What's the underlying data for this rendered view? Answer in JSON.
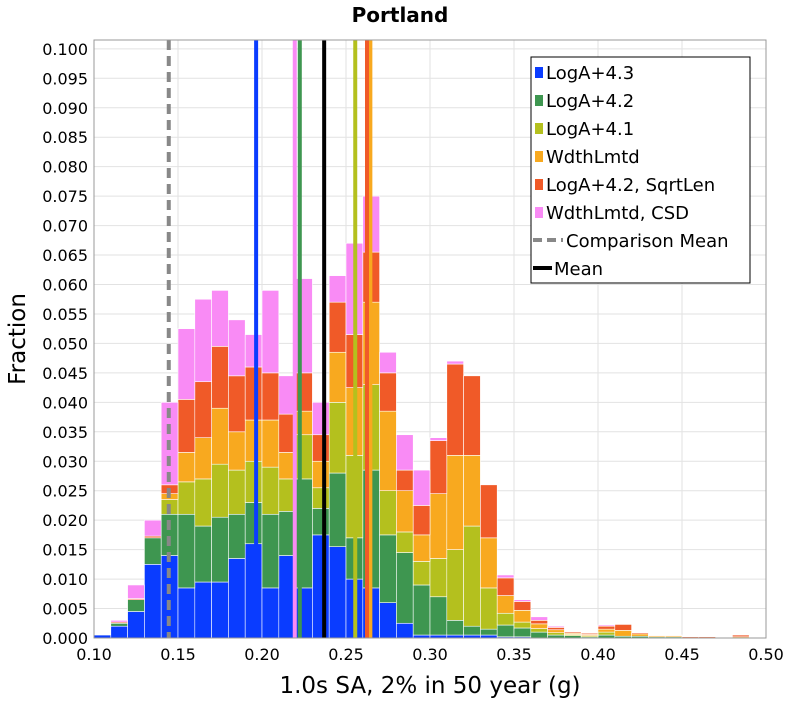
{
  "chart_data": {
    "type": "bar",
    "subtype": "stacked-histogram",
    "title": "Portland",
    "xlabel": "1.0s SA, 2% in 50 year (g)",
    "ylabel": "Fraction",
    "xlim": [
      0.1,
      0.5
    ],
    "ylim": [
      0.0,
      0.1015
    ],
    "bin_width": 0.01,
    "grid": true,
    "legend_position": "top-right",
    "x_ticks": [
      "0.10",
      "0.15",
      "0.20",
      "0.25",
      "0.30",
      "0.35",
      "0.40",
      "0.45",
      "0.50"
    ],
    "y_ticks": [
      "0.000",
      "0.005",
      "0.010",
      "0.015",
      "0.020",
      "0.025",
      "0.030",
      "0.035",
      "0.040",
      "0.045",
      "0.050",
      "0.055",
      "0.060",
      "0.065",
      "0.070",
      "0.075",
      "0.080",
      "0.085",
      "0.090",
      "0.095",
      "0.100"
    ],
    "x_bins": [
      0.1,
      0.11,
      0.12,
      0.13,
      0.14,
      0.15,
      0.16,
      0.17,
      0.18,
      0.19,
      0.2,
      0.21,
      0.22,
      0.23,
      0.24,
      0.25,
      0.26,
      0.27,
      0.28,
      0.29,
      0.3,
      0.31,
      0.32,
      0.33,
      0.34,
      0.35,
      0.36,
      0.37,
      0.38,
      0.39,
      0.4,
      0.41,
      0.42,
      0.43,
      0.44,
      0.45,
      0.46,
      0.47,
      0.48,
      0.49
    ],
    "series": [
      {
        "name": "LogA+4.3",
        "color": "#0a3cff",
        "values": [
          0.0005,
          0.002,
          0.0045,
          0.0125,
          0.014,
          0.0085,
          0.0095,
          0.0095,
          0.0135,
          0.016,
          0.0085,
          0.014,
          0.0085,
          0.0175,
          0.0155,
          0.01,
          0.0085,
          0.006,
          0.0025,
          0.0005,
          0.0005,
          0.0005,
          0.0005,
          0.0005,
          0.0002,
          0.0002,
          0.0,
          0.0,
          0.0,
          0.0,
          0.0,
          0.0,
          0.0,
          0.0,
          0.0,
          0.0,
          0.0,
          0.0,
          0.0,
          0.0
        ]
      },
      {
        "name": "LogA+4.2",
        "color": "#3e9650",
        "values": [
          0.0,
          0.0005,
          0.002,
          0.0045,
          0.007,
          0.0125,
          0.0095,
          0.011,
          0.0075,
          0.007,
          0.0125,
          0.0075,
          0.0185,
          0.0045,
          0.0125,
          0.007,
          0.02,
          0.0115,
          0.012,
          0.0085,
          0.0065,
          0.0025,
          0.0015,
          0.001,
          0.002,
          0.0015,
          0.001,
          0.0005,
          0.0004,
          0.0002,
          0.0005,
          0.0003,
          0.0003,
          0.0002,
          0.0002,
          0.0,
          0.0,
          0.0,
          0.0,
          0.0
        ]
      },
      {
        "name": "LogA+4.1",
        "color": "#b4c01e",
        "values": [
          0.0,
          0.0,
          0.0,
          0.0,
          0.0025,
          0.0055,
          0.008,
          0.009,
          0.0075,
          0.007,
          0.008,
          0.0055,
          0.0075,
          0.0035,
          0.012,
          0.014,
          0.0145,
          0.0075,
          0.0035,
          0.004,
          0.0065,
          0.012,
          0.017,
          0.007,
          0.002,
          0.001,
          0.0006,
          0.0004,
          0.0002,
          0.0002,
          0.0005,
          0.0,
          0.0,
          0.0,
          0.0,
          0.0,
          0.0,
          0.0,
          0.0,
          0.0
        ]
      },
      {
        "name": "WdthLmtd",
        "color": "#f8a91f",
        "values": [
          0.0,
          0.0,
          0.0,
          0.0,
          0.001,
          0.005,
          0.007,
          0.0095,
          0.0065,
          0.007,
          0.008,
          0.0045,
          0.004,
          0.0045,
          0.0085,
          0.0115,
          0.014,
          0.0135,
          0.007,
          0.0045,
          0.011,
          0.016,
          0.012,
          0.0085,
          0.003,
          0.002,
          0.0008,
          0.0005,
          0.0002,
          0.0002,
          0.0005,
          0.001,
          0.0004,
          0.0002,
          0.0002,
          0.0,
          0.0,
          0.0,
          0.0002,
          0.0
        ]
      },
      {
        "name": "LogA+4.2, SqrtLen",
        "color": "#f05a28",
        "values": [
          0.0,
          0.0002,
          0.0002,
          0.0003,
          0.0015,
          0.009,
          0.0095,
          0.0105,
          0.0095,
          0.009,
          0.008,
          0.0065,
          0.0065,
          0.0045,
          0.0085,
          0.009,
          0.0085,
          0.0065,
          0.0035,
          0.005,
          0.009,
          0.0155,
          0.0135,
          0.009,
          0.003,
          0.0015,
          0.0006,
          0.0004,
          0.0002,
          0.0002,
          0.0005,
          0.001,
          0.0002,
          0.0001,
          0.0001,
          0.0002,
          0.0002,
          0.0,
          0.0003,
          0.0
        ]
      },
      {
        "name": "WdthLmtd, CSD",
        "color": "#f98bf5",
        "values": [
          0.0,
          0.0003,
          0.0023,
          0.0027,
          0.014,
          0.012,
          0.014,
          0.0095,
          0.0095,
          0.0055,
          0.014,
          0.0065,
          0.016,
          0.0055,
          0.0045,
          0.0155,
          0.0095,
          0.0035,
          0.006,
          0.006,
          0.0005,
          0.0005,
          0.0,
          0.0,
          0.0005,
          0.0003,
          0.0006,
          0.0002,
          0.0,
          0.0,
          0.0002,
          0.0,
          0.0,
          0.0,
          0.0,
          0.0,
          0.0,
          0.0,
          0.0,
          0.0
        ]
      }
    ],
    "mean_lines": [
      {
        "name": "LogA+4.3",
        "x": 0.1965,
        "color": "#0a3cff"
      },
      {
        "name": "LogA+4.2",
        "x": 0.2225,
        "color": "#3e9650"
      },
      {
        "name": "LogA+4.1",
        "x": 0.2555,
        "color": "#b4c01e"
      },
      {
        "name": "WdthLmtd",
        "x": 0.2645,
        "color": "#f8a91f"
      },
      {
        "name": "LogA+4.2, SqrtLen",
        "x": 0.2625,
        "color": "#f05a28"
      },
      {
        "name": "WdthLmtd, CSD",
        "x": 0.2195,
        "color": "#f98bf5"
      },
      {
        "name": "Mean",
        "x": 0.237,
        "color": "#000000"
      }
    ],
    "comparison_mean": {
      "name": "Comparison Mean",
      "x": 0.1445,
      "color": "#888888"
    },
    "legend": [
      {
        "label": "LogA+4.3",
        "color": "#0a3cff",
        "kind": "square"
      },
      {
        "label": "LogA+4.2",
        "color": "#3e9650",
        "kind": "square"
      },
      {
        "label": "LogA+4.1",
        "color": "#b4c01e",
        "kind": "square"
      },
      {
        "label": "WdthLmtd",
        "color": "#f8a91f",
        "kind": "square"
      },
      {
        "label": "LogA+4.2, SqrtLen",
        "color": "#f05a28",
        "kind": "square"
      },
      {
        "label": "WdthLmtd, CSD",
        "color": "#f98bf5",
        "kind": "square"
      },
      {
        "label": "Comparison Mean",
        "color": "#888888",
        "kind": "dashed"
      },
      {
        "label": "Mean",
        "color": "#000000",
        "kind": "solid"
      }
    ]
  }
}
